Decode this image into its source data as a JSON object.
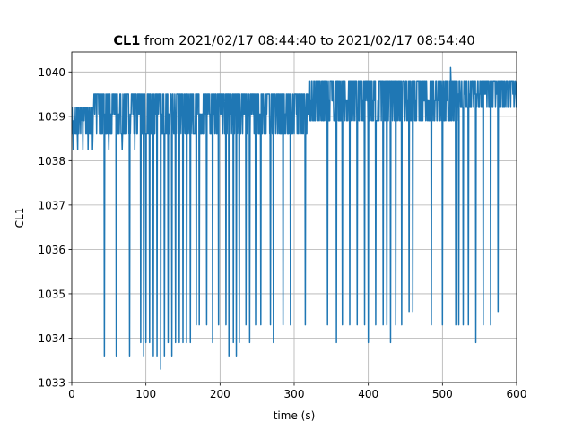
{
  "chart_data": {
    "type": "line",
    "title_bold": "CL1",
    "title_rest": " from 2021/02/17 08:44:40 to 2021/02/17 08:54:40",
    "xlabel": "time (s)",
    "ylabel": "CL1",
    "xlim": [
      0,
      600
    ],
    "ylim": [
      1033,
      1040.45
    ],
    "xticks": [
      0,
      100,
      200,
      300,
      400,
      500,
      600
    ],
    "xtick_labels": [
      "0",
      "100",
      "200",
      "300",
      "400",
      "500",
      "600"
    ],
    "yticks": [
      1033,
      1034,
      1035,
      1036,
      1037,
      1038,
      1039,
      1040
    ],
    "ytick_labels": [
      "1033",
      "1034",
      "1035",
      "1036",
      "1037",
      "1038",
      "1039",
      "1040"
    ],
    "grid": true,
    "line_color": "#1f77b4",
    "series": [
      {
        "sample_step_s": 0.5,
        "bands": [
          {
            "t0": 0,
            "t1": 30,
            "low": 1038.6,
            "high": 1039.2
          },
          {
            "t0": 30,
            "t1": 60,
            "low": 1038.6,
            "high": 1039.5
          },
          {
            "t0": 60,
            "t1": 150,
            "low": 1038.6,
            "high": 1039.5
          },
          {
            "t0": 150,
            "t1": 220,
            "low": 1038.6,
            "high": 1039.5
          },
          {
            "t0": 220,
            "t1": 320,
            "low": 1038.6,
            "high": 1039.5
          },
          {
            "t0": 320,
            "t1": 400,
            "low": 1038.9,
            "high": 1039.8
          },
          {
            "t0": 400,
            "t1": 520,
            "low": 1038.9,
            "high": 1039.8
          },
          {
            "t0": 520,
            "t1": 600,
            "low": 1039.2,
            "high": 1039.8
          }
        ],
        "excursions": [
          {
            "t": 2,
            "y": 1038.25
          },
          {
            "t": 8,
            "y": 1038.25
          },
          {
            "t": 15,
            "y": 1038.25
          },
          {
            "t": 22,
            "y": 1038.25
          },
          {
            "t": 28,
            "y": 1038.25
          },
          {
            "t": 44,
            "y": 1033.6
          },
          {
            "t": 50,
            "y": 1038.25
          },
          {
            "t": 60,
            "y": 1033.6
          },
          {
            "t": 68,
            "y": 1038.25
          },
          {
            "t": 78,
            "y": 1033.6
          },
          {
            "t": 85,
            "y": 1038.25
          },
          {
            "t": 93,
            "y": 1033.9
          },
          {
            "t": 97,
            "y": 1033.6
          },
          {
            "t": 100,
            "y": 1033.9
          },
          {
            "t": 105,
            "y": 1033.9
          },
          {
            "t": 110,
            "y": 1033.6
          },
          {
            "t": 115,
            "y": 1033.6
          },
          {
            "t": 120,
            "y": 1033.3
          },
          {
            "t": 125,
            "y": 1033.6
          },
          {
            "t": 130,
            "y": 1033.9
          },
          {
            "t": 135,
            "y": 1033.6
          },
          {
            "t": 140,
            "y": 1033.9
          },
          {
            "t": 145,
            "y": 1033.9
          },
          {
            "t": 150,
            "y": 1033.9
          },
          {
            "t": 155,
            "y": 1033.9
          },
          {
            "t": 160,
            "y": 1033.9
          },
          {
            "t": 168,
            "y": 1034.3
          },
          {
            "t": 172,
            "y": 1034.3
          },
          {
            "t": 182,
            "y": 1034.3
          },
          {
            "t": 190,
            "y": 1033.9
          },
          {
            "t": 198,
            "y": 1034.3
          },
          {
            "t": 208,
            "y": 1034.3
          },
          {
            "t": 212,
            "y": 1033.6
          },
          {
            "t": 218,
            "y": 1033.9
          },
          {
            "t": 222,
            "y": 1033.6
          },
          {
            "t": 226,
            "y": 1033.9
          },
          {
            "t": 235,
            "y": 1034.3
          },
          {
            "t": 240,
            "y": 1033.9
          },
          {
            "t": 248,
            "y": 1034.3
          },
          {
            "t": 255,
            "y": 1034.3
          },
          {
            "t": 268,
            "y": 1034.3
          },
          {
            "t": 272,
            "y": 1033.9
          },
          {
            "t": 285,
            "y": 1034.3
          },
          {
            "t": 295,
            "y": 1034.3
          },
          {
            "t": 315,
            "y": 1034.3
          },
          {
            "t": 345,
            "y": 1034.3
          },
          {
            "t": 357,
            "y": 1033.9
          },
          {
            "t": 365,
            "y": 1034.3
          },
          {
            "t": 375,
            "y": 1034.3
          },
          {
            "t": 385,
            "y": 1034.3
          },
          {
            "t": 395,
            "y": 1034.3
          },
          {
            "t": 400,
            "y": 1033.9
          },
          {
            "t": 410,
            "y": 1034.3
          },
          {
            "t": 420,
            "y": 1034.3
          },
          {
            "t": 425,
            "y": 1034.3
          },
          {
            "t": 430,
            "y": 1033.9
          },
          {
            "t": 437,
            "y": 1034.3
          },
          {
            "t": 445,
            "y": 1034.3
          },
          {
            "t": 455,
            "y": 1034.6
          },
          {
            "t": 460,
            "y": 1034.6
          },
          {
            "t": 485,
            "y": 1034.3
          },
          {
            "t": 500,
            "y": 1034.3
          },
          {
            "t": 518,
            "y": 1034.3
          },
          {
            "t": 522,
            "y": 1034.3
          },
          {
            "t": 528,
            "y": 1034.3
          },
          {
            "t": 535,
            "y": 1034.3
          },
          {
            "t": 545,
            "y": 1033.9
          },
          {
            "t": 555,
            "y": 1034.3
          },
          {
            "t": 565,
            "y": 1034.3
          },
          {
            "t": 575,
            "y": 1034.6
          }
        ],
        "peak": {
          "t": 511,
          "y": 1040.1
        }
      }
    ]
  }
}
